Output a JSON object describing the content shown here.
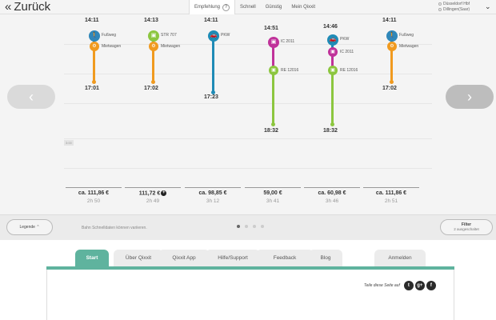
{
  "header": {
    "back_label": "Zurück",
    "tabs": [
      {
        "label": "Empfehlung"
      },
      {
        "label": "Schnell"
      },
      {
        "label": "Günstig"
      },
      {
        "label": "Mein Qixxit"
      }
    ],
    "help_label": "?",
    "route": {
      "from": "Düsseldorf Hbf",
      "to": "Dillingen(Saar)"
    }
  },
  "chart": {
    "axis_label": "3:00"
  },
  "connections": [
    {
      "departure": "14:11",
      "arrival": "17:01",
      "legs": [
        {
          "mode": "walk-icon",
          "label": "Fußweg",
          "color": "#2f87b9",
          "glyph": "🚶"
        },
        {
          "mode": "rental-car-icon",
          "label": "Mietwagen",
          "color": "#f09a1f",
          "glyph": "⚙"
        }
      ],
      "price": "ca. 111,86 €",
      "duration": "2h 50"
    },
    {
      "departure": "14:13",
      "arrival": "17:02",
      "legs": [
        {
          "mode": "tram-icon",
          "label": "STR 707",
          "color": "#8cc63f",
          "glyph": "▣"
        },
        {
          "mode": "rental-car-icon",
          "label": "Mietwagen",
          "color": "#f09a1f",
          "glyph": "⚙"
        }
      ],
      "price": "111,72 €",
      "duration": "2h 49",
      "plus": "+"
    },
    {
      "departure": "14:11",
      "arrival": "17:23",
      "legs": [
        {
          "mode": "car-icon",
          "label": "PKW",
          "color": "#1f8bb6",
          "glyph": "🚗"
        }
      ],
      "price": "ca. 98,85 €",
      "duration": "3h 12"
    },
    {
      "departure": "14:51",
      "arrival": "18:32",
      "legs": [
        {
          "mode": "train-icon",
          "label": "IC 2011",
          "color": "#c0329a",
          "glyph": "▣"
        },
        {
          "mode": "regional-train-icon",
          "label": "RE 12016",
          "color": "#8cc63f",
          "glyph": "▣"
        }
      ],
      "price": "59,00 €",
      "duration": "3h 41"
    },
    {
      "departure": "14:46",
      "arrival": "18:32",
      "legs": [
        {
          "mode": "car-icon",
          "label": "PKW",
          "color": "#1f8bb6",
          "glyph": "🚗"
        },
        {
          "mode": "train-icon",
          "label": "IC 2011",
          "color": "#c0329a",
          "glyph": "▣"
        },
        {
          "mode": "regional-train-icon",
          "label": "RE 12016",
          "color": "#8cc63f",
          "glyph": "▣"
        }
      ],
      "price": "ca. 60,98 €",
      "duration": "3h 46"
    },
    {
      "departure": "14:11",
      "arrival": "17:02",
      "legs": [
        {
          "mode": "walk-icon",
          "label": "Fußweg",
          "color": "#2f87b9",
          "glyph": "🚶"
        },
        {
          "mode": "rental-car-icon",
          "label": "Mietwagen",
          "color": "#f09a1f",
          "glyph": "⚙"
        }
      ],
      "price": "ca. 111,86 €",
      "duration": "2h 51"
    }
  ],
  "controls": {
    "legend_label": "Legende",
    "hint": "Bahn Schnelldaten können variieren.",
    "filter_label": "Filter",
    "filter_sub": "2 ausgeschaltet",
    "page_count": 4,
    "active_page": 1
  },
  "footer": {
    "tabs": [
      {
        "label": "Start"
      },
      {
        "label": "Über Qixxit"
      },
      {
        "label": "Qixxit App"
      },
      {
        "label": "Hilfe/Support"
      },
      {
        "label": "Feedback"
      },
      {
        "label": "Blog"
      },
      {
        "label": "Anmelden"
      }
    ],
    "share_label": "Teile diese Seite auf",
    "social": [
      {
        "name": "twitter-icon",
        "glyph": "t"
      },
      {
        "name": "google-plus-icon",
        "glyph": "g+"
      },
      {
        "name": "facebook-icon",
        "glyph": "f"
      }
    ]
  }
}
